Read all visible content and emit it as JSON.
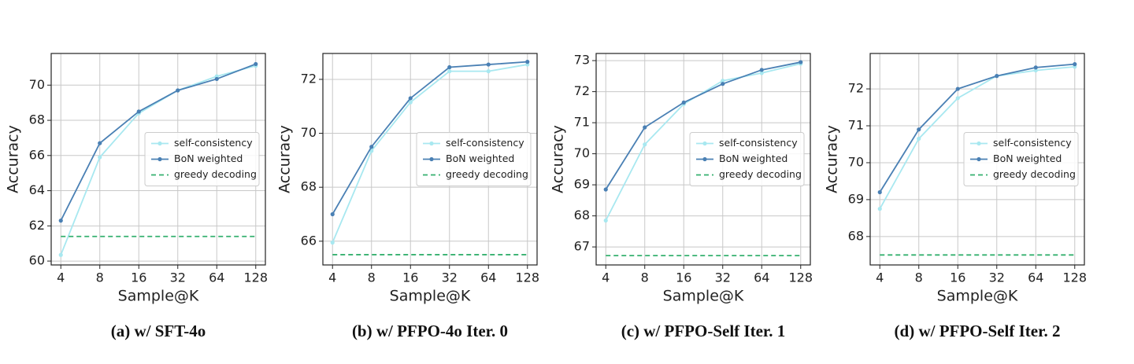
{
  "chart_data": [
    {
      "type": "line",
      "caption": "(a) w/ SFT-4o",
      "x_label": "Sample@K",
      "y_label": "Accuracy",
      "categories": [
        "4",
        "8",
        "16",
        "32",
        "64",
        "128"
      ],
      "series": [
        {
          "name": "self-consistency",
          "color": "#a8e8f0",
          "marker": true,
          "linestyle": "solid",
          "values": [
            60.35,
            65.9,
            68.4,
            69.7,
            70.5,
            71.1
          ]
        },
        {
          "name": "BoN weighted",
          "color": "#4a80b4",
          "marker": true,
          "linestyle": "solid",
          "values": [
            62.3,
            66.7,
            68.5,
            69.7,
            70.35,
            71.2
          ]
        },
        {
          "name": "greedy decoding",
          "color": "#35b06f",
          "marker": false,
          "linestyle": "dashed",
          "values": [
            61.4,
            61.4,
            61.4,
            61.4,
            61.4,
            61.4
          ]
        }
      ],
      "ylim": [
        59.78,
        71.8
      ],
      "yticks": [
        60,
        62,
        64,
        66,
        68,
        70
      ],
      "grid": true,
      "legend": "center right"
    },
    {
      "type": "line",
      "caption": "(b) w/ PFPO-4o Iter. 0",
      "x_label": "Sample@K",
      "y_label": "Accuracy",
      "categories": [
        "4",
        "8",
        "16",
        "32",
        "64",
        "128"
      ],
      "series": [
        {
          "name": "self-consistency",
          "color": "#a8e8f0",
          "marker": true,
          "linestyle": "solid",
          "values": [
            65.95,
            69.35,
            71.15,
            72.3,
            72.3,
            72.55
          ]
        },
        {
          "name": "BoN weighted",
          "color": "#4a80b4",
          "marker": true,
          "linestyle": "solid",
          "values": [
            67.0,
            69.5,
            71.3,
            72.45,
            72.55,
            72.65
          ]
        },
        {
          "name": "greedy decoding",
          "color": "#35b06f",
          "marker": false,
          "linestyle": "dashed",
          "values": [
            65.5,
            65.5,
            65.5,
            65.5,
            65.5,
            65.5
          ]
        }
      ],
      "ylim": [
        65.12,
        72.96
      ],
      "yticks": [
        66,
        68,
        70,
        72
      ],
      "grid": true,
      "legend": "center right"
    },
    {
      "type": "line",
      "caption": "(c) w/ PFPO-Self Iter. 1",
      "x_label": "Sample@K",
      "y_label": "Accuracy",
      "categories": [
        "4",
        "8",
        "16",
        "32",
        "64",
        "128"
      ],
      "series": [
        {
          "name": "self-consistency",
          "color": "#a8e8f0",
          "marker": true,
          "linestyle": "solid",
          "values": [
            67.85,
            70.3,
            71.6,
            72.35,
            72.6,
            72.9
          ]
        },
        {
          "name": "BoN weighted",
          "color": "#4a80b4",
          "marker": true,
          "linestyle": "solid",
          "values": [
            68.85,
            70.85,
            71.65,
            72.25,
            72.7,
            72.95
          ]
        },
        {
          "name": "greedy decoding",
          "color": "#35b06f",
          "marker": false,
          "linestyle": "dashed",
          "values": [
            66.72,
            66.72,
            66.72,
            66.72,
            66.72,
            66.72
          ]
        }
      ],
      "ylim": [
        66.42,
        73.23
      ],
      "yticks": [
        67,
        68,
        69,
        70,
        71,
        72,
        73
      ],
      "grid": true,
      "legend": "center right"
    },
    {
      "type": "line",
      "caption": "(d) w/ PFPO-Self Iter. 2",
      "x_label": "Sample@K",
      "y_label": "Accuracy",
      "categories": [
        "4",
        "8",
        "16",
        "32",
        "64",
        "128"
      ],
      "series": [
        {
          "name": "self-consistency",
          "color": "#a8e8f0",
          "marker": true,
          "linestyle": "solid",
          "values": [
            68.75,
            70.65,
            71.75,
            72.35,
            72.5,
            72.6
          ]
        },
        {
          "name": "BoN weighted",
          "color": "#4a80b4",
          "marker": true,
          "linestyle": "solid",
          "values": [
            69.2,
            70.9,
            72.0,
            72.35,
            72.58,
            72.67
          ]
        },
        {
          "name": "greedy decoding",
          "color": "#35b06f",
          "marker": false,
          "linestyle": "dashed",
          "values": [
            67.5,
            67.5,
            67.5,
            67.5,
            67.5,
            67.5
          ]
        }
      ],
      "ylim": [
        67.23,
        72.96
      ],
      "yticks": [
        68,
        69,
        70,
        71,
        72
      ],
      "grid": true,
      "legend": "center right"
    }
  ]
}
